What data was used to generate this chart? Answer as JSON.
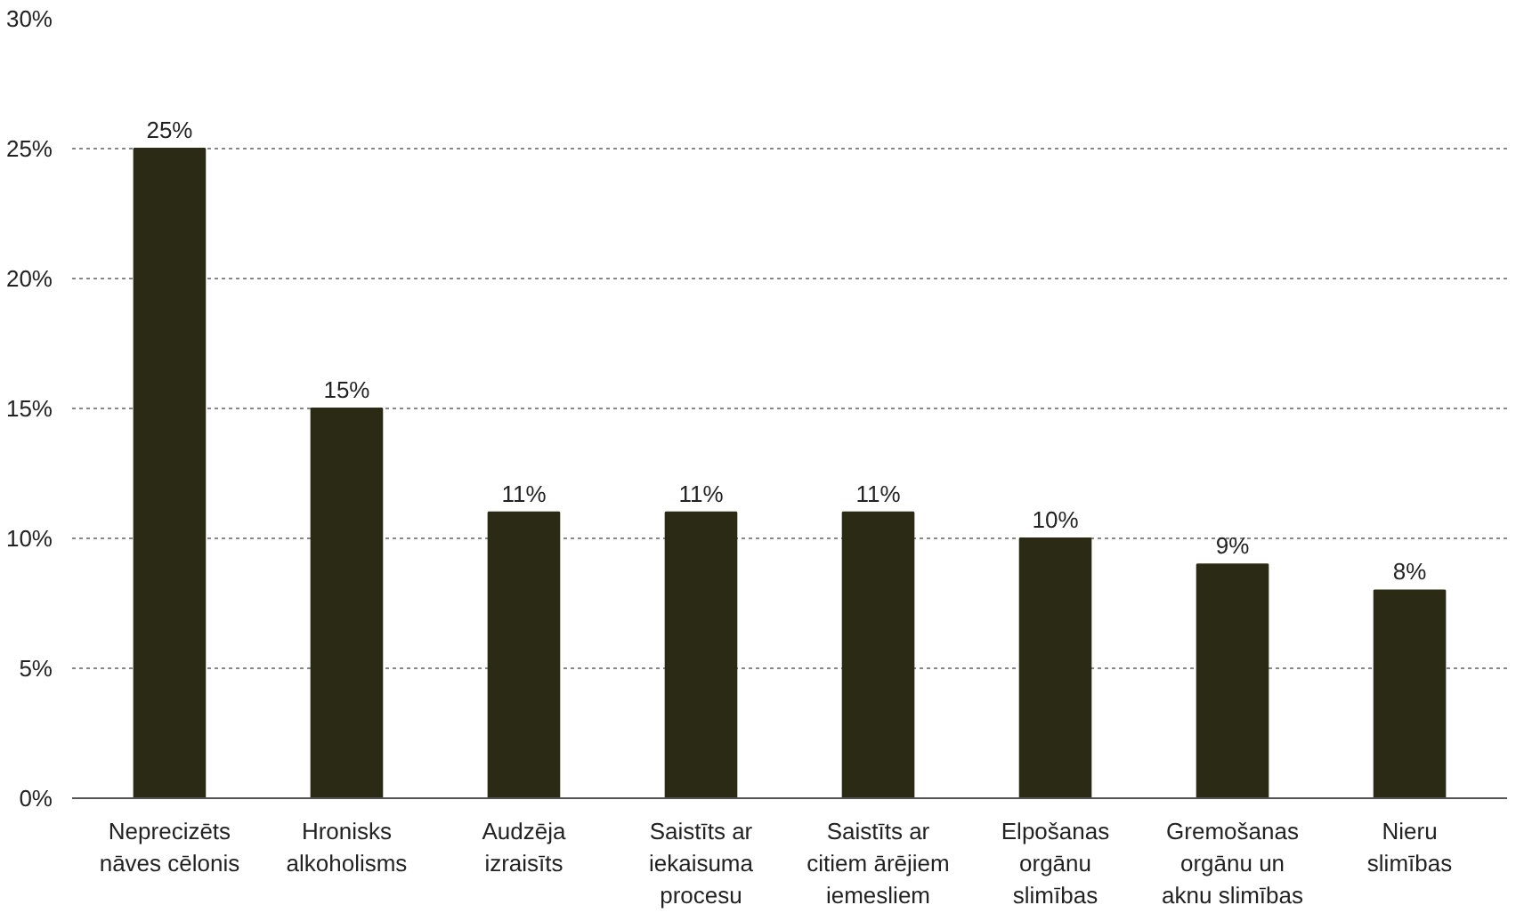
{
  "chart_data": {
    "type": "bar",
    "categories": [
      "Neprecizēts\nnāves cēlonis",
      "Hronisks\nalkoholisms",
      "Audzēja\nizraisīts",
      "Saistīts ar\niekaisuma\nprocesu",
      "Saistīts ar\ncitiem ārējiem\niemesliem",
      "Elpošanas\norgānu\nslimības",
      "Gremošanas\norgānu un\naknu slimības",
      "Nieru\nslimības"
    ],
    "values": [
      25,
      15,
      11,
      11,
      11,
      10,
      9,
      8
    ],
    "value_labels": [
      "25%",
      "15%",
      "11%",
      "11%",
      "11%",
      "10%",
      "9%",
      "8%"
    ],
    "color": "#2b2a14",
    "ylim": [
      0,
      30
    ],
    "yticks": [
      {
        "value": 0,
        "label": "0%"
      },
      {
        "value": 5,
        "label": "5%"
      },
      {
        "value": 10,
        "label": "10%"
      },
      {
        "value": 15,
        "label": "15%"
      },
      {
        "value": 20,
        "label": "20%"
      },
      {
        "value": 25,
        "label": "25%"
      },
      {
        "value": 30,
        "label": "30%"
      }
    ],
    "grid": "y"
  }
}
